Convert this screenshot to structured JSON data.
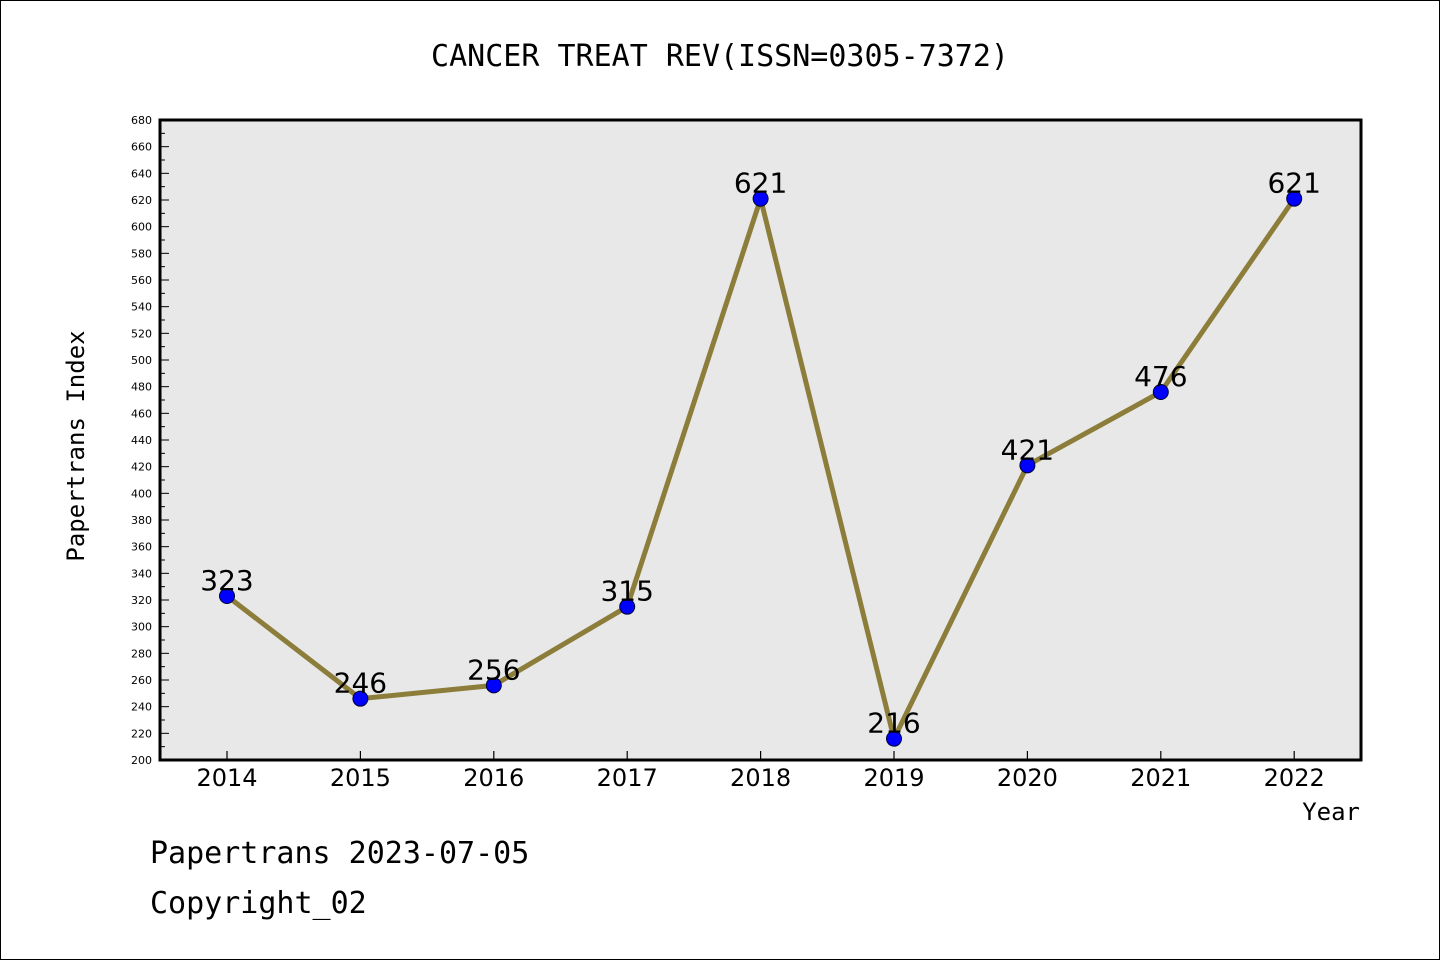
{
  "chart_data": {
    "type": "line",
    "title": "CANCER TREAT REV(ISSN=0305-7372)",
    "xlabel": "Year",
    "ylabel": "Papertrans Index",
    "categories": [
      "2014",
      "2015",
      "2016",
      "2017",
      "2018",
      "2019",
      "2020",
      "2021",
      "2022"
    ],
    "series": [
      {
        "values": [
          323,
          246,
          256,
          315,
          621,
          216,
          421,
          476,
          621
        ],
        "data_labels": [
          "323",
          "246",
          "256",
          "315",
          "621",
          "216",
          "421",
          "476",
          "621"
        ]
      }
    ],
    "ylim": [
      200,
      680
    ],
    "y_ticks": [
      "200",
      "220",
      "240",
      "260",
      "280",
      "300",
      "320",
      "340",
      "360",
      "380",
      "400",
      "420",
      "440",
      "460",
      "480",
      "500",
      "520",
      "540",
      "560",
      "580",
      "600",
      "620",
      "640",
      "660",
      "680"
    ],
    "grid": false,
    "line_color": "#8c7d3a",
    "marker_color": "#0000ff",
    "plot_background": "#e8e8e8"
  },
  "footer": {
    "line1": "Papertrans 2023-07-05",
    "line2": "Copyright_02"
  }
}
